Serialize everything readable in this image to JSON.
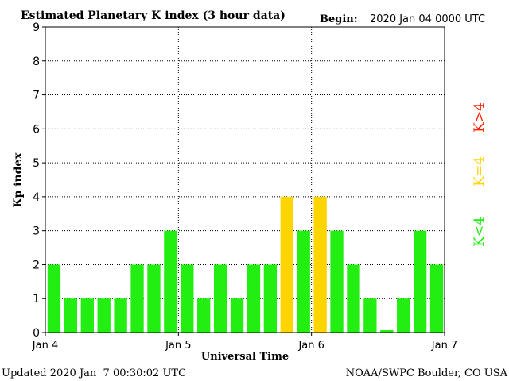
{
  "chart_data": {
    "type": "bar",
    "title": "Estimated Planetary K index (3 hour data)",
    "begin_label": "Begin:",
    "begin_value": "2020 Jan 04 0000 UTC",
    "xlabel": "Universal Time",
    "ylabel": "Kp index",
    "ylim": [
      0,
      9
    ],
    "yticks": [
      "0",
      "1",
      "2",
      "3",
      "4",
      "5",
      "6",
      "7",
      "8",
      "9"
    ],
    "xticks": [
      "Jan 4",
      "Jan 5",
      "Jan 6",
      "Jan 7"
    ],
    "values": [
      2,
      1,
      1,
      1,
      1,
      2,
      2,
      3,
      2,
      1,
      2,
      1,
      2,
      2,
      4,
      3,
      4,
      3,
      2,
      1,
      0.07,
      1,
      3,
      2
    ],
    "colors": {
      "below": "#22ee11",
      "equal": "#ffd500",
      "above": "#ff2200"
    },
    "legend": {
      "below": "K<4",
      "equal": "K=4",
      "above": "K>4"
    },
    "grid": "dotted"
  },
  "footer": {
    "updated": "Updated 2020 Jan  7 00:30:02 UTC",
    "credit": "NOAA/SWPC Boulder, CO USA"
  }
}
